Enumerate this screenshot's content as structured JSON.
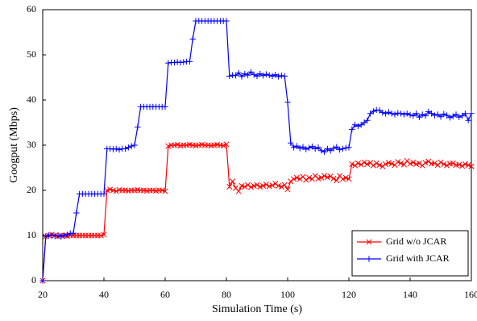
{
  "chart_data": {
    "type": "line",
    "x_label": "Simulation Time (s)",
    "y_label": "Googput (Mbps)",
    "xlim": [
      20,
      160
    ],
    "xticks": [
      20,
      40,
      60,
      80,
      100,
      120,
      140,
      160
    ],
    "ylim": [
      0,
      60
    ],
    "yticks": [
      0,
      10,
      20,
      30,
      40,
      50,
      60
    ],
    "grid": false,
    "legend": "lower right",
    "x": [
      20,
      21,
      22,
      23,
      24,
      25,
      26,
      27,
      28,
      29,
      30,
      31,
      32,
      33,
      34,
      35,
      36,
      37,
      38,
      39,
      40,
      41,
      42,
      43,
      44,
      45,
      46,
      47,
      48,
      49,
      50,
      51,
      52,
      53,
      54,
      55,
      56,
      57,
      58,
      59,
      60,
      61,
      62,
      63,
      64,
      65,
      66,
      67,
      68,
      69,
      70,
      71,
      72,
      73,
      74,
      75,
      76,
      77,
      78,
      79,
      80,
      81,
      82,
      83,
      84,
      85,
      86,
      87,
      88,
      89,
      90,
      91,
      92,
      93,
      94,
      95,
      96,
      97,
      98,
      99,
      100,
      101,
      102,
      103,
      104,
      105,
      106,
      107,
      108,
      109,
      110,
      111,
      112,
      113,
      114,
      115,
      116,
      117,
      118,
      119,
      120,
      121,
      122,
      123,
      124,
      125,
      126,
      127,
      128,
      129,
      130,
      131,
      132,
      133,
      134,
      135,
      136,
      137,
      138,
      139,
      140,
      141,
      142,
      143,
      144,
      145,
      146,
      147,
      148,
      149,
      150,
      151,
      152,
      153,
      154,
      155,
      156,
      157,
      158,
      159,
      160
    ],
    "series": [
      {
        "name": "Grid w/o JCAR",
        "color": "#ff0000",
        "marker": "x",
        "values": [
          0,
          9.8,
          10,
          10.2,
          10,
          9.8,
          10,
          10,
          9.9,
          10,
          10,
          10,
          10,
          10,
          10,
          10,
          10,
          10,
          10,
          10,
          10.2,
          20,
          20.2,
          20,
          19.8,
          20.1,
          20,
          20,
          19.9,
          20,
          20,
          20.1,
          20,
          20,
          19.9,
          20,
          20,
          19.9,
          20,
          20,
          19.8,
          29.8,
          30,
          30,
          30.1,
          29.9,
          30,
          30,
          30.1,
          30,
          29.9,
          30,
          30.1,
          30,
          30,
          29.9,
          30,
          30.1,
          30,
          29.9,
          30.2,
          20.8,
          22,
          20.5,
          19.8,
          21,
          20.8,
          21.2,
          20.7,
          21,
          21.2,
          20.8,
          21,
          21.3,
          20.9,
          21.1,
          21.5,
          21,
          20.8,
          21.2,
          20.2,
          22,
          22.5,
          22.8,
          22.5,
          23,
          22.3,
          22.8,
          22.5,
          23.2,
          22.6,
          22.8,
          23.2,
          22.9,
          23.1,
          22.6,
          22.2,
          23.2,
          22.5,
          22.8,
          22.5,
          25.8,
          25.5,
          26,
          25.7,
          26.2,
          25.8,
          26.1,
          25.5,
          26,
          25.6,
          25.3,
          25.8,
          26.1,
          25.9,
          25.6,
          26.3,
          26,
          25.7,
          26.5,
          25.9,
          26.2,
          25.8,
          26,
          25.5,
          26.1,
          26.4,
          25.9,
          26,
          25.6,
          26.2,
          25.8,
          25.5,
          25.9,
          26,
          25.6,
          25.7,
          25.4,
          25.8,
          25.6,
          25.3
        ]
      },
      {
        "name": "Grid with JCAR",
        "color": "#0000ff",
        "marker": "+",
        "values": [
          0,
          9.8,
          10,
          10,
          9.9,
          10,
          9.8,
          10,
          10.2,
          10.5,
          10.5,
          15,
          19.2,
          19.2,
          19.2,
          19.2,
          19.2,
          19.2,
          19.2,
          19.2,
          19.2,
          29.2,
          29.2,
          29.1,
          29.2,
          29,
          29.2,
          29.2,
          29.5,
          29.8,
          30,
          34,
          38.5,
          38.5,
          38.5,
          38.5,
          38.5,
          38.5,
          38.5,
          38.5,
          38.5,
          48.2,
          48.3,
          48.3,
          48.4,
          48.3,
          48.4,
          48.5,
          48.5,
          53.5,
          57.5,
          57.5,
          57.5,
          57.5,
          57.5,
          57.5,
          57.5,
          57.5,
          57.5,
          57.5,
          57.5,
          45.3,
          45.5,
          45.4,
          46,
          45.2,
          45.8,
          45.5,
          46.2,
          45.6,
          45.3,
          45.8,
          45.4,
          45.7,
          45.5,
          45.3,
          45.6,
          45.2,
          45.4,
          45.3,
          39.5,
          30.5,
          29.5,
          29.8,
          29.3,
          29.6,
          29.1,
          29.4,
          29.7,
          29.2,
          29.5,
          28.8,
          28.5,
          29.2,
          28.8,
          29.3,
          29.6,
          29,
          29.2,
          29.4,
          29.5,
          33.5,
          34.5,
          34.2,
          34.5,
          35,
          35.5,
          37,
          37.5,
          37.8,
          37.7,
          37.2,
          37,
          37.3,
          37,
          36.8,
          37.1,
          37,
          36.8,
          37,
          36.7,
          36.5,
          37,
          36.2,
          36.8,
          36.5,
          37.4,
          37,
          36.6,
          36.8,
          36.3,
          36.9,
          36.6,
          36.1,
          36.4,
          36.8,
          36.2,
          36.5,
          37,
          35.5,
          37
        ]
      }
    ]
  }
}
